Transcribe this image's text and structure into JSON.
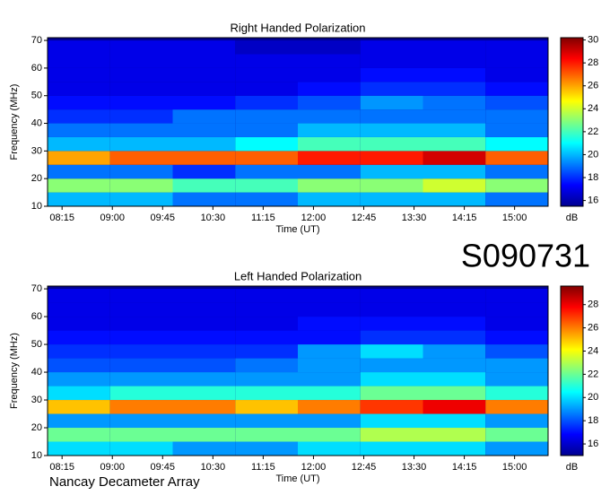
{
  "chart_data": [
    {
      "type": "heatmap",
      "title": "Right Handed Polarization",
      "xlabel": "Time (UT)",
      "ylabel": "Frequency (MHz)",
      "clabel": "dB",
      "xlim": [
        482,
        930
      ],
      "ylim": [
        10,
        71
      ],
      "xticks": [
        {
          "value": 495,
          "label": "08:15"
        },
        {
          "value": 540,
          "label": "09:00"
        },
        {
          "value": 585,
          "label": "09:45"
        },
        {
          "value": 630,
          "label": "10:30"
        },
        {
          "value": 675,
          "label": "11:15"
        },
        {
          "value": 720,
          "label": "12:00"
        },
        {
          "value": 765,
          "label": "12:45"
        },
        {
          "value": 810,
          "label": "13:30"
        },
        {
          "value": 855,
          "label": "14:15"
        },
        {
          "value": 900,
          "label": "15:00"
        }
      ],
      "yticks": [
        10,
        20,
        30,
        40,
        50,
        60,
        70
      ],
      "clim": [
        15.5,
        30.2
      ],
      "cticks": [
        16,
        18,
        20,
        22,
        24,
        26,
        28,
        30
      ],
      "x": [
        510,
        566,
        622,
        678,
        734,
        790,
        846,
        902
      ],
      "y": [
        12.5,
        17.5,
        22.5,
        27.5,
        32.5,
        37.5,
        42.5,
        47.5,
        52.5,
        57.5,
        62.5,
        67.5
      ],
      "values": [
        [
          20,
          20,
          19,
          19,
          20,
          20,
          20,
          19
        ],
        [
          23,
          23,
          22,
          22,
          23,
          23,
          24,
          23
        ],
        [
          19,
          19,
          18,
          19,
          19,
          20,
          20,
          19
        ],
        [
          26,
          27,
          27,
          27,
          28,
          28,
          29,
          27
        ],
        [
          20,
          20,
          20,
          21,
          22,
          22,
          22,
          21
        ],
        [
          19,
          19,
          19,
          19,
          20,
          20,
          20,
          19
        ],
        [
          18,
          18,
          19,
          19,
          19,
          19,
          19,
          19
        ],
        [
          17.5,
          17.5,
          17.5,
          18,
          18.5,
          19.5,
          19,
          18.5
        ],
        [
          17,
          17,
          17,
          17,
          17.5,
          18,
          18,
          17.5
        ],
        [
          17,
          17,
          17,
          17,
          17,
          17.5,
          17.5,
          17
        ],
        [
          17,
          17,
          17,
          17,
          17,
          17,
          17,
          17
        ],
        [
          17,
          17,
          17,
          16.5,
          16.5,
          17,
          17,
          17
        ]
      ]
    },
    {
      "type": "heatmap",
      "title": "Left Handed Polarization",
      "xlabel": "Time (UT)",
      "ylabel": "Frequency (MHz)",
      "clabel": "dB",
      "xlim": [
        482,
        930
      ],
      "ylim": [
        10,
        71
      ],
      "xticks": [
        {
          "value": 495,
          "label": "08:15"
        },
        {
          "value": 540,
          "label": "09:00"
        },
        {
          "value": 585,
          "label": "09:45"
        },
        {
          "value": 630,
          "label": "10:30"
        },
        {
          "value": 675,
          "label": "11:15"
        },
        {
          "value": 720,
          "label": "12:00"
        },
        {
          "value": 765,
          "label": "12:45"
        },
        {
          "value": 810,
          "label": "13:30"
        },
        {
          "value": 855,
          "label": "14:15"
        },
        {
          "value": 900,
          "label": "15:00"
        }
      ],
      "yticks": [
        10,
        20,
        30,
        40,
        50,
        60,
        70
      ],
      "clim": [
        15,
        29.6
      ],
      "cticks": [
        16,
        18,
        20,
        22,
        24,
        26,
        28
      ],
      "x": [
        510,
        566,
        622,
        678,
        734,
        790,
        846,
        902
      ],
      "y": [
        12.5,
        17.5,
        22.5,
        27.5,
        32.5,
        37.5,
        42.5,
        47.5,
        52.5,
        57.5,
        62.5,
        67.5
      ],
      "values": [
        [
          20,
          20,
          19,
          19,
          20,
          20,
          20,
          19
        ],
        [
          22,
          22,
          22,
          22,
          22,
          23,
          23,
          22
        ],
        [
          19,
          19,
          19,
          19,
          19,
          20,
          20,
          19
        ],
        [
          25,
          26,
          26,
          25,
          26,
          27,
          28,
          26
        ],
        [
          20,
          21,
          21,
          21,
          21,
          22,
          22,
          21
        ],
        [
          19,
          19,
          19,
          19,
          19,
          20,
          20,
          19
        ],
        [
          18,
          18,
          18,
          18.5,
          19,
          19,
          19,
          19
        ],
        [
          17.5,
          17.5,
          17.5,
          17.5,
          19,
          20,
          19,
          18
        ],
        [
          17,
          17,
          17,
          17,
          17,
          17.5,
          17.5,
          17
        ],
        [
          16.5,
          16.5,
          16.5,
          16.5,
          17,
          17,
          17,
          16.5
        ],
        [
          16.5,
          16.5,
          16.5,
          16.5,
          16.5,
          16.5,
          16.5,
          16.5
        ],
        [
          16.5,
          16.5,
          16.5,
          16.5,
          16.5,
          16.5,
          16.5,
          16.5
        ]
      ]
    }
  ],
  "annotations": [
    "S090731",
    "Nancay Decameter Array"
  ]
}
